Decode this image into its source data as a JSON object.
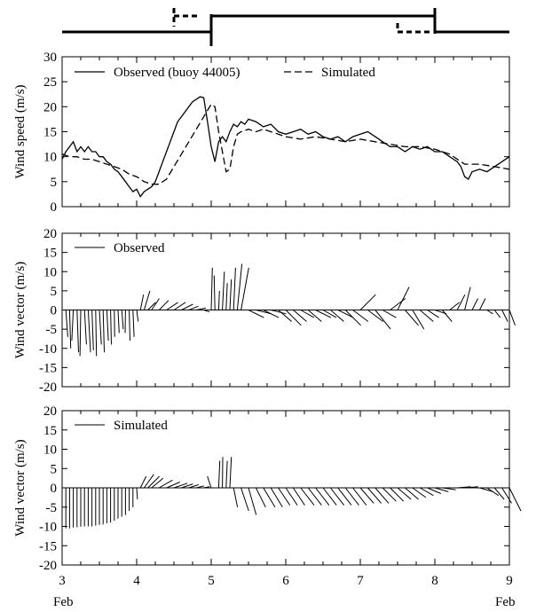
{
  "chart_data": [
    {
      "type": "line",
      "panel": "timeline",
      "xlim": [
        3,
        9
      ],
      "series": [
        {
          "style": "solid",
          "segments": [
            [
              3,
              5
            ],
            [
              5,
              8
            ],
            [
              8,
              9
            ]
          ]
        },
        {
          "style": "dashed",
          "segments": [
            [
              4.5,
              4.85
            ],
            [
              7.5,
              7.95
            ]
          ]
        }
      ]
    },
    {
      "type": "line",
      "panel": "speed",
      "ylabel": "Wind speed (m/s)",
      "xlim": [
        3,
        9
      ],
      "ylim": [
        0,
        30
      ],
      "xticks": [
        3,
        4,
        5,
        6,
        7,
        8,
        9
      ],
      "yticks": [
        0,
        5,
        10,
        15,
        20,
        25,
        30
      ],
      "legend_position": "top-left",
      "series": [
        {
          "name": "Observed (buoy 44005)",
          "style": "solid",
          "x": [
            3.0,
            3.05,
            3.1,
            3.15,
            3.2,
            3.25,
            3.3,
            3.35,
            3.4,
            3.45,
            3.5,
            3.55,
            3.6,
            3.65,
            3.7,
            3.75,
            3.8,
            3.85,
            3.9,
            3.95,
            4.0,
            4.05,
            4.1,
            4.15,
            4.2,
            4.25,
            4.3,
            4.35,
            4.4,
            4.45,
            4.5,
            4.55,
            4.6,
            4.65,
            4.7,
            4.75,
            4.8,
            4.85,
            4.9,
            4.95,
            5.0,
            5.05,
            5.1,
            5.15,
            5.2,
            5.25,
            5.3,
            5.35,
            5.4,
            5.45,
            5.5,
            5.6,
            5.7,
            5.8,
            5.9,
            6.0,
            6.1,
            6.2,
            6.3,
            6.4,
            6.5,
            6.6,
            6.7,
            6.8,
            6.9,
            7.0,
            7.1,
            7.2,
            7.3,
            7.4,
            7.5,
            7.6,
            7.7,
            7.8,
            7.9,
            8.0,
            8.1,
            8.2,
            8.3,
            8.35,
            8.4,
            8.45,
            8.5,
            8.6,
            8.7,
            8.8,
            8.9,
            9.0
          ],
          "y": [
            9.5,
            11,
            12,
            13,
            11,
            12,
            11,
            12,
            11,
            11,
            10,
            10,
            9,
            8.5,
            7.5,
            7,
            6,
            5,
            4,
            3,
            3.5,
            2,
            3,
            3.5,
            4,
            5,
            7,
            9,
            11,
            13,
            15,
            17,
            18,
            19,
            20,
            21,
            21.5,
            22,
            21.8,
            17,
            12,
            9,
            13,
            14,
            13,
            15,
            16.5,
            16,
            17,
            16.5,
            17.5,
            17,
            16,
            16.5,
            15,
            14.5,
            15,
            15.5,
            14.5,
            15,
            14,
            13.5,
            14,
            13,
            14,
            14.5,
            15,
            14,
            13,
            12,
            12,
            11,
            12,
            11.5,
            12,
            11,
            11,
            10,
            9,
            8,
            6,
            5.5,
            7,
            7.5,
            7,
            8,
            9,
            10
          ],
          "color": "#000000"
        },
        {
          "name": "Simulated",
          "style": "dashed",
          "x": [
            3.0,
            3.1,
            3.2,
            3.3,
            3.4,
            3.5,
            3.6,
            3.7,
            3.8,
            3.9,
            4.0,
            4.1,
            4.2,
            4.3,
            4.4,
            4.5,
            4.6,
            4.7,
            4.8,
            4.9,
            5.0,
            5.05,
            5.1,
            5.15,
            5.2,
            5.25,
            5.3,
            5.35,
            5.4,
            5.5,
            5.6,
            5.7,
            5.8,
            5.9,
            6.0,
            6.2,
            6.4,
            6.6,
            6.8,
            7.0,
            7.2,
            7.4,
            7.6,
            7.8,
            8.0,
            8.2,
            8.4,
            8.6,
            8.8,
            9.0
          ],
          "y": [
            10.5,
            10,
            10,
            9.5,
            9.5,
            9,
            8.5,
            8,
            7.5,
            6.5,
            6,
            5,
            4.5,
            4.5,
            5.5,
            8,
            10.5,
            13,
            15.5,
            18,
            20.5,
            20,
            15,
            11,
            7,
            7.5,
            12,
            14.5,
            15,
            15.5,
            15,
            15.5,
            15,
            14.5,
            14,
            13.5,
            14,
            13.5,
            13,
            13.5,
            13,
            12.5,
            12,
            12,
            11.5,
            10.5,
            8.5,
            8.5,
            8,
            7.5
          ],
          "color": "#000000"
        }
      ]
    },
    {
      "type": "vector",
      "panel": "observed_vectors",
      "ylabel": "Wind vector (m/s)",
      "xlim": [
        3,
        9
      ],
      "ylim": [
        -20,
        20
      ],
      "xticks": [
        3,
        4,
        5,
        6,
        7,
        8,
        9
      ],
      "yticks": [
        -20,
        -15,
        -10,
        -5,
        0,
        5,
        10,
        15,
        20
      ],
      "legend_position": "top-left",
      "series": [
        {
          "name": "Observed",
          "x": [
            3.05,
            3.1,
            3.15,
            3.2,
            3.25,
            3.3,
            3.35,
            3.4,
            3.45,
            3.5,
            3.55,
            3.6,
            3.65,
            3.7,
            3.75,
            3.8,
            3.85,
            3.9,
            3.95,
            4.0,
            4.05,
            4.1,
            4.15,
            4.2,
            4.3,
            4.4,
            4.5,
            4.6,
            4.7,
            4.8,
            4.9,
            5.0,
            5.05,
            5.1,
            5.15,
            5.2,
            5.25,
            5.3,
            5.35,
            5.4,
            5.5,
            5.6,
            5.7,
            5.8,
            5.9,
            6.0,
            6.1,
            6.2,
            6.3,
            6.4,
            6.5,
            6.6,
            6.7,
            6.8,
            6.9,
            7.0,
            7.1,
            7.2,
            7.3,
            7.4,
            7.5,
            7.6,
            7.7,
            7.8,
            7.9,
            8.0,
            8.1,
            8.2,
            8.3,
            8.4,
            8.5,
            8.6,
            8.7,
            8.8,
            8.9,
            9.0
          ],
          "u": [
            0.5,
            0.3,
            -0.4,
            0.4,
            -0.2,
            0.5,
            0.6,
            0.4,
            0.2,
            0.5,
            0.3,
            0.4,
            0.2,
            0.1,
            0.3,
            0.4,
            -0.1,
            0.2,
            0.3,
            0.4,
            0.8,
            1.5,
            2,
            2,
            2.5,
            3,
            3,
            3,
            2.5,
            2.5,
            1.5,
            0.3,
            -0.2,
            0.2,
            0.5,
            0.3,
            0.4,
            0.5,
            1.2,
            2,
            4,
            4,
            4,
            4,
            3.5,
            4,
            3.5,
            3.5,
            3.5,
            4,
            3.5,
            3.5,
            4,
            4,
            4,
            4,
            4,
            4,
            3.5,
            4,
            3,
            3.5,
            3,
            3.5,
            3,
            3,
            2.5,
            2.5,
            2,
            1.5,
            1.5,
            1.5,
            1.5,
            1.5,
            1.5,
            1.5
          ],
          "v": [
            -7,
            -10,
            -8,
            -11,
            -12,
            -9,
            -11,
            -10.5,
            -12,
            -9,
            -11,
            -8,
            -9,
            -7,
            -6,
            -5,
            -6,
            -8,
            -7,
            -3,
            4,
            5,
            2,
            3,
            2.5,
            2,
            2,
            1.5,
            1,
            0.5,
            -0.5,
            11,
            9,
            5,
            10,
            7,
            8,
            11,
            12,
            11,
            -2,
            -1,
            -2,
            -1,
            -3,
            -4,
            -3,
            -2,
            -3,
            -2,
            -2,
            -3,
            -2,
            -4,
            -3,
            4,
            -3,
            -5,
            -2,
            3,
            6,
            -4,
            -5,
            -3,
            -2,
            -1,
            -3,
            2,
            4,
            6,
            3,
            3,
            -1,
            -2,
            -3,
            -4
          ],
          "color": "#000000"
        }
      ]
    },
    {
      "type": "vector",
      "panel": "simulated_vectors",
      "ylabel": "Wind vector (m/s)",
      "xlim": [
        3,
        9
      ],
      "ylim": [
        -20,
        20
      ],
      "xticks": [
        3,
        4,
        5,
        6,
        7,
        8,
        9
      ],
      "xticklabels": [
        "3",
        "4",
        "5",
        "6",
        "7",
        "8",
        "9"
      ],
      "yticks": [
        -20,
        -15,
        -10,
        -5,
        0,
        5,
        10,
        15,
        20
      ],
      "legend_position": "top-left",
      "series": [
        {
          "name": "Simulated",
          "x": [
            3.05,
            3.1,
            3.15,
            3.2,
            3.25,
            3.3,
            3.35,
            3.4,
            3.45,
            3.5,
            3.55,
            3.6,
            3.65,
            3.7,
            3.75,
            3.8,
            3.85,
            3.9,
            3.95,
            4.0,
            4.05,
            4.1,
            4.15,
            4.2,
            4.3,
            4.4,
            4.5,
            4.6,
            4.7,
            4.8,
            4.9,
            5.0,
            5.1,
            5.15,
            5.2,
            5.25,
            5.3,
            5.4,
            5.5,
            5.6,
            5.7,
            5.8,
            5.9,
            6.0,
            6.1,
            6.2,
            6.3,
            6.4,
            6.5,
            6.6,
            6.7,
            6.8,
            6.9,
            7.0,
            7.1,
            7.2,
            7.3,
            7.4,
            7.5,
            7.6,
            7.7,
            7.8,
            7.9,
            8.0,
            8.1,
            8.2,
            8.3,
            8.4,
            8.5,
            8.6,
            8.7,
            8.8,
            8.9,
            9.0
          ],
          "u": [
            0,
            0,
            0,
            0,
            0,
            0,
            0,
            0,
            0,
            0,
            0,
            0,
            0,
            0,
            0,
            0,
            0,
            0,
            0,
            0.2,
            1.5,
            2.5,
            3,
            3,
            3.5,
            3.5,
            3.5,
            3,
            2.5,
            2,
            1.5,
            -1,
            0.3,
            0.1,
            0.3,
            0.4,
            1,
            2,
            2,
            2.5,
            3,
            3,
            3,
            3,
            3,
            3.5,
            3.5,
            3.5,
            3.5,
            3.5,
            3.5,
            3.5,
            3.5,
            3.5,
            3.5,
            3.5,
            3.5,
            3.5,
            3.5,
            3.5,
            3.5,
            3.5,
            3.5,
            3.5,
            3.5,
            3.5,
            3.5,
            3.5,
            3.5,
            3.5,
            3,
            2.5,
            2.5,
            3
          ],
          "v": [
            -10.5,
            -10.5,
            -10.3,
            -10.2,
            -10.1,
            -10,
            -10,
            -10,
            -9.8,
            -9.6,
            -9.5,
            -9.2,
            -9,
            -8.5,
            -8,
            -7.5,
            -7,
            -6,
            -5,
            -3,
            3,
            3.5,
            3,
            2.5,
            2,
            1.5,
            1.2,
            1,
            0.8,
            0.5,
            0.3,
            3,
            7,
            8,
            7,
            8,
            -5,
            -6,
            -7,
            -5,
            -5,
            -5,
            -4.5,
            -4.5,
            -4.5,
            -4.5,
            -4.5,
            -4.5,
            -4.5,
            -4.5,
            -4.5,
            -4.5,
            -4.5,
            -4,
            -4,
            -4,
            -3.5,
            -3.5,
            -3,
            -3,
            -2.5,
            -2,
            -1.5,
            -1,
            -0.5,
            0,
            0.3,
            0.3,
            0,
            -1,
            -2,
            -3,
            -4,
            -6
          ],
          "color": "#000000"
        }
      ]
    }
  ],
  "axis": {
    "month_left": "Feb",
    "month_right": "Feb"
  }
}
